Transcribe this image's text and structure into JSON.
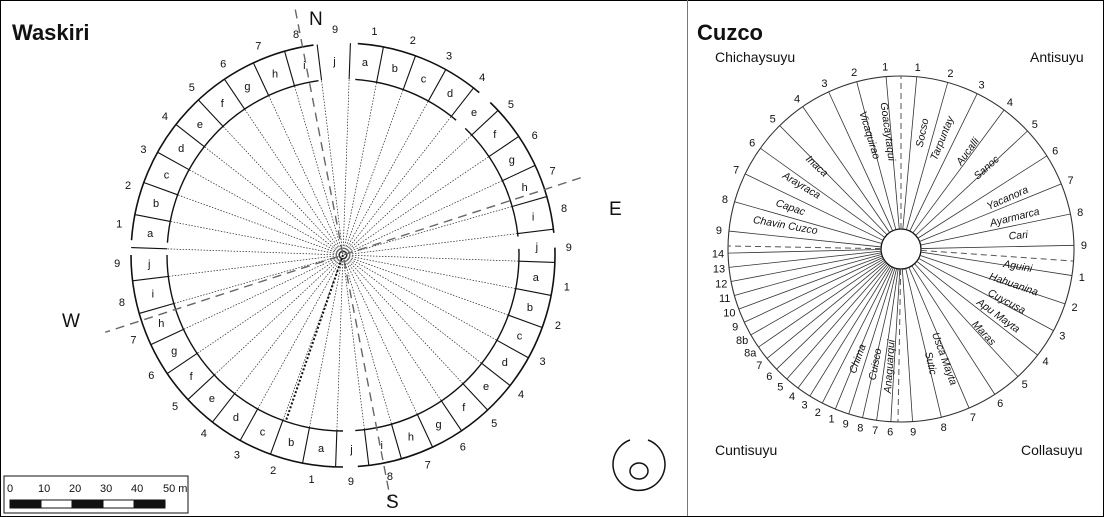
{
  "waskiri": {
    "title": "Waskiri",
    "directions": {
      "n": "N",
      "e": "E",
      "s": "S",
      "w": "W"
    },
    "outer_numbers": [
      "1",
      "2",
      "3",
      "4",
      "5",
      "6",
      "7",
      "8",
      "9",
      "1",
      "2",
      "3",
      "4",
      "5",
      "6",
      "7",
      "8",
      "9",
      "1",
      "2",
      "3",
      "4",
      "5",
      "6",
      "7",
      "8",
      "9",
      "1",
      "2",
      "3",
      "4",
      "5",
      "6",
      "7",
      "8",
      "9"
    ],
    "inner_letters": [
      "a",
      "b",
      "c",
      "d",
      "e",
      "f",
      "g",
      "h",
      "i",
      "j",
      "a",
      "b",
      "c",
      "d",
      "e",
      "f",
      "g",
      "h",
      "i",
      "j",
      "a",
      "b",
      "c",
      "d",
      "e",
      "f",
      "g",
      "h",
      "i",
      "j",
      "a",
      "b",
      "c",
      "d",
      "e",
      "f",
      "g",
      "h",
      "i",
      "j"
    ],
    "scale": {
      "ticks": [
        "0",
        "10",
        "20",
        "30",
        "40",
        "50 m"
      ]
    }
  },
  "cuzco": {
    "title": "Cuzco",
    "quadrants": {
      "nw": "Chichaysuyu",
      "ne": "Antisuyu",
      "sw": "Cuntisuyu",
      "se": "Collasuyu"
    },
    "north_numbers": [
      "1",
      "2",
      "3",
      "4",
      "5",
      "6",
      "7",
      "8",
      "9"
    ],
    "east_numbers": [
      "1",
      "2",
      "3",
      "4",
      "5",
      "6",
      "7",
      "8",
      "9"
    ],
    "south_numbers": [
      "1",
      "2",
      "3",
      "4",
      "5",
      "6",
      "7",
      "8",
      "9"
    ],
    "west_numbers": [
      "14",
      "13",
      "12",
      "11",
      "10",
      "9",
      "8b",
      "8a",
      "7",
      "6",
      "5",
      "4",
      "3",
      "2",
      "1",
      "9",
      "8",
      "7",
      "6"
    ],
    "ceque_names": [
      "Goacaytaqui",
      "Vicaquirao",
      "Inaca",
      "Arayraca",
      "Capac",
      "Chavin Cuzco",
      "Socso",
      "Tarpuntay",
      "Aucalli",
      "Sanoc",
      "Yacanora",
      "Ayarmarca",
      "Cari",
      "Aguini",
      "Hahuanina",
      "Cuycusa",
      "Apu Mayta",
      "Maras",
      "Usca Mayta",
      "Sutic",
      "Anaguarqui",
      "Cuisco",
      "Chima"
    ]
  }
}
